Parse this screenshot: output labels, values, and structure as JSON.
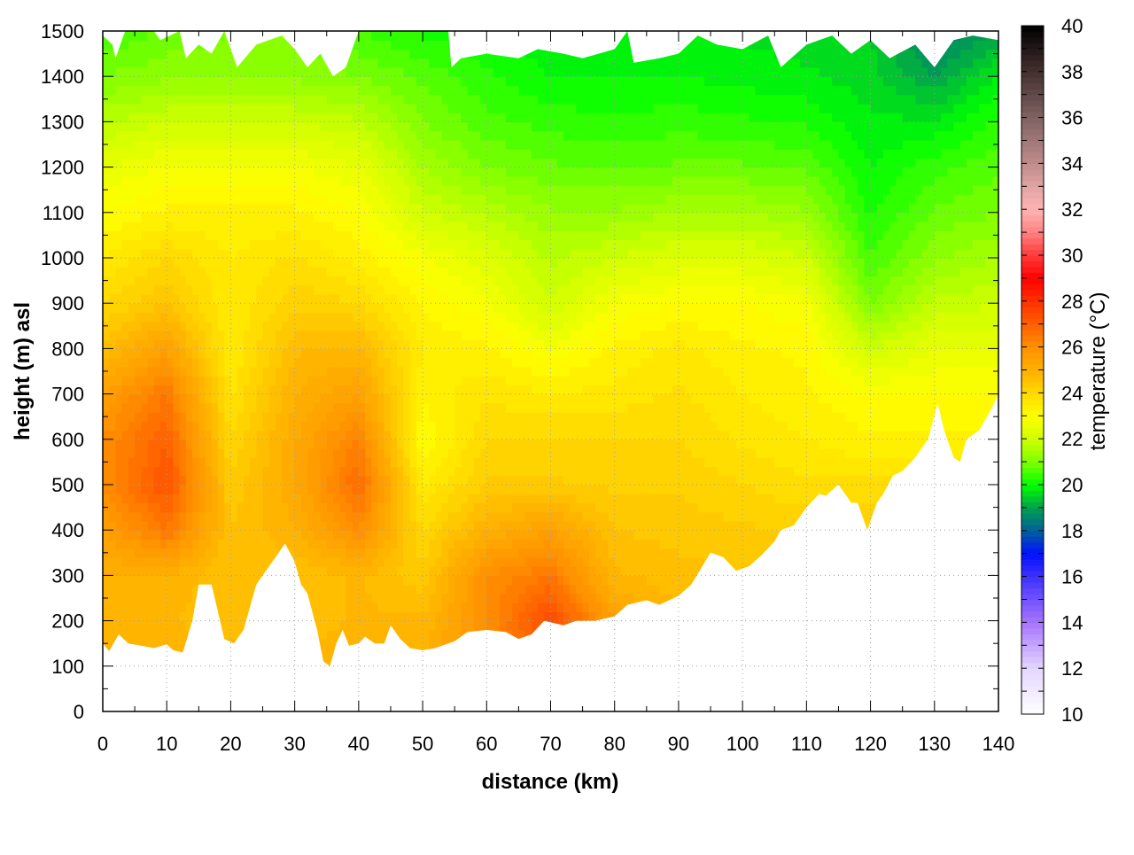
{
  "chart_data": {
    "type": "heatmap",
    "title": "",
    "xlabel": "distance (km)",
    "ylabel": "height (m) asl",
    "colorbar_label": "temperature (°C)",
    "xlim": [
      0,
      140
    ],
    "ylim": [
      0,
      1500
    ],
    "clim": [
      10,
      40
    ],
    "grid": true,
    "xticks": [
      0,
      10,
      20,
      30,
      40,
      50,
      60,
      70,
      80,
      90,
      100,
      110,
      120,
      130,
      140
    ],
    "yticks": [
      0,
      100,
      200,
      300,
      400,
      500,
      600,
      700,
      800,
      900,
      1000,
      1100,
      1200,
      1300,
      1400,
      1500
    ],
    "cticks": [
      10,
      12,
      14,
      16,
      18,
      20,
      22,
      24,
      26,
      28,
      30,
      32,
      34,
      36,
      38,
      40
    ],
    "colormap": [
      [
        10,
        "#ffffff"
      ],
      [
        12,
        "#e4d6ff"
      ],
      [
        14,
        "#a774ff"
      ],
      [
        16,
        "#3c32ff"
      ],
      [
        17,
        "#0010ff"
      ],
      [
        18,
        "#00609c"
      ],
      [
        19,
        "#00a04c"
      ],
      [
        20,
        "#00ff00"
      ],
      [
        21,
        "#80ff00"
      ],
      [
        22,
        "#d0ff00"
      ],
      [
        23,
        "#ffff00"
      ],
      [
        24,
        "#ffd800"
      ],
      [
        25,
        "#ffb000"
      ],
      [
        26,
        "#ff9000"
      ],
      [
        27,
        "#ff6000"
      ],
      [
        28,
        "#ff3000"
      ],
      [
        29,
        "#ff0000"
      ],
      [
        30,
        "#ff3a3a"
      ],
      [
        31,
        "#ff8080"
      ],
      [
        32,
        "#ffb4b4"
      ],
      [
        33,
        "#e0a4a4"
      ],
      [
        34,
        "#c08c8c"
      ],
      [
        36,
        "#806262"
      ],
      [
        38,
        "#44302f"
      ],
      [
        40,
        "#000000"
      ]
    ],
    "grid_x_km": [
      0,
      10,
      20,
      30,
      40,
      50,
      60,
      70,
      80,
      90,
      100,
      110,
      120,
      130,
      140
    ],
    "grid_y_m": [
      1500,
      1400,
      1300,
      1200,
      1100,
      1000,
      900,
      800,
      700,
      600,
      500,
      400,
      300,
      200,
      100,
      0
    ],
    "temperature": [
      [
        20.5,
        20.8,
        21.0,
        21.0,
        20.5,
        20.2,
        20.0,
        19.8,
        20.0,
        19.8,
        19.7,
        19.6,
        19.5,
        18.5,
        19.0
      ],
      [
        21.0,
        21.2,
        21.2,
        21.2,
        21.0,
        20.7,
        20.3,
        20.0,
        20.0,
        20.0,
        19.9,
        19.8,
        19.6,
        19.0,
        19.8
      ],
      [
        21.7,
        22.0,
        22.0,
        22.0,
        21.8,
        21.0,
        20.6,
        20.4,
        20.3,
        20.4,
        20.3,
        20.2,
        19.8,
        19.8,
        20.3
      ],
      [
        22.5,
        22.8,
        22.8,
        22.8,
        22.5,
        21.5,
        21.0,
        20.8,
        20.7,
        20.8,
        20.8,
        20.7,
        20.0,
        20.4,
        20.7
      ],
      [
        23.0,
        23.3,
        23.3,
        23.3,
        23.0,
        22.0,
        21.7,
        21.3,
        21.3,
        21.5,
        21.5,
        21.3,
        20.2,
        20.8,
        21.0
      ],
      [
        23.5,
        24.0,
        23.5,
        23.8,
        23.4,
        22.8,
        22.3,
        21.7,
        22.0,
        22.3,
        22.3,
        22.0,
        20.5,
        21.2,
        21.5
      ],
      [
        24.0,
        24.5,
        23.5,
        24.2,
        24.0,
        23.2,
        22.8,
        22.0,
        22.8,
        23.0,
        23.0,
        22.8,
        21.0,
        21.8,
        22.0
      ],
      [
        24.6,
        25.5,
        23.5,
        24.7,
        24.8,
        23.5,
        23.3,
        22.8,
        23.3,
        23.6,
        23.3,
        23.2,
        22.0,
        22.5,
        22.5
      ],
      [
        25.5,
        26.5,
        23.7,
        25.0,
        25.5,
        23.3,
        23.7,
        23.5,
        23.6,
        23.8,
        23.5,
        23.3,
        23.0,
        23.0,
        23.0
      ],
      [
        26.0,
        27.0,
        24.0,
        25.2,
        26.3,
        23.0,
        24.0,
        24.0,
        24.0,
        24.0,
        23.7,
        23.5,
        23.3,
        23.3,
        23.3
      ],
      [
        26.0,
        27.3,
        24.3,
        25.2,
        26.8,
        23.5,
        24.3,
        24.3,
        24.2,
        24.2,
        24.0,
        23.8,
        23.8,
        23.8,
        23.8
      ],
      [
        25.5,
        26.5,
        24.5,
        25.0,
        26.0,
        24.0,
        25.0,
        25.5,
        24.5,
        24.4,
        24.3,
        24.2,
        24.2,
        24.2,
        24.2
      ],
      [
        25.0,
        25.0,
        24.5,
        24.5,
        24.8,
        24.3,
        26.0,
        26.5,
        24.8,
        24.6,
        24.5,
        24.5,
        24.5,
        24.5,
        24.5
      ],
      [
        25.0,
        24.8,
        24.5,
        24.5,
        24.8,
        24.8,
        26.0,
        27.5,
        25.5,
        24.8,
        24.7,
        24.7,
        24.7,
        24.7,
        24.7
      ],
      [
        25.0,
        25.0,
        25.0,
        25.0,
        25.0,
        25.0,
        26.0,
        27.0,
        25.5,
        25.0,
        25.0,
        25.0,
        25.0,
        25.0,
        25.0
      ],
      [
        25.0,
        25.0,
        25.0,
        25.0,
        25.0,
        25.0,
        26.0,
        27.0,
        25.5,
        25.0,
        25.0,
        25.0,
        25.0,
        25.0,
        25.0
      ]
    ],
    "terrain_profile": [
      [
        0,
        150
      ],
      [
        1,
        133
      ],
      [
        2.5,
        170
      ],
      [
        4,
        150
      ],
      [
        6,
        145
      ],
      [
        8,
        140
      ],
      [
        10,
        148
      ],
      [
        11,
        135
      ],
      [
        12.5,
        130
      ],
      [
        14,
        200
      ],
      [
        15,
        280
      ],
      [
        17,
        280
      ],
      [
        18,
        220
      ],
      [
        19,
        160
      ],
      [
        20.5,
        150
      ],
      [
        22,
        180
      ],
      [
        24,
        280
      ],
      [
        26,
        320
      ],
      [
        28.5,
        370
      ],
      [
        30,
        330
      ],
      [
        31,
        280
      ],
      [
        32,
        260
      ],
      [
        33.5,
        180
      ],
      [
        34.5,
        110
      ],
      [
        35.5,
        100
      ],
      [
        36.5,
        150
      ],
      [
        37.5,
        180
      ],
      [
        38.5,
        145
      ],
      [
        40,
        150
      ],
      [
        41,
        165
      ],
      [
        42.5,
        150
      ],
      [
        44,
        150
      ],
      [
        45,
        190
      ],
      [
        46.5,
        160
      ],
      [
        48,
        140
      ],
      [
        50,
        135
      ],
      [
        52,
        140
      ],
      [
        55,
        155
      ],
      [
        57,
        175
      ],
      [
        60,
        180
      ],
      [
        63,
        175
      ],
      [
        65,
        160
      ],
      [
        67,
        170
      ],
      [
        69,
        200
      ],
      [
        72,
        190
      ],
      [
        74,
        200
      ],
      [
        77,
        200
      ],
      [
        80,
        210
      ],
      [
        82,
        235
      ],
      [
        85,
        245
      ],
      [
        87,
        235
      ],
      [
        90,
        255
      ],
      [
        92,
        280
      ],
      [
        95,
        350
      ],
      [
        97,
        340
      ],
      [
        99,
        310
      ],
      [
        101,
        320
      ],
      [
        103,
        345
      ],
      [
        105,
        375
      ],
      [
        106,
        400
      ],
      [
        108,
        410
      ],
      [
        110,
        450
      ],
      [
        112,
        480
      ],
      [
        113,
        475
      ],
      [
        115,
        500
      ],
      [
        117,
        460
      ],
      [
        118,
        460
      ],
      [
        119.5,
        400
      ],
      [
        121,
        460
      ],
      [
        122,
        480
      ],
      [
        123.5,
        520
      ],
      [
        125,
        530
      ],
      [
        127,
        560
      ],
      [
        129,
        600
      ],
      [
        130.5,
        680
      ],
      [
        131.5,
        620
      ],
      [
        133,
        560
      ],
      [
        134,
        550
      ],
      [
        135,
        600
      ],
      [
        137,
        620
      ],
      [
        139,
        670
      ],
      [
        140,
        700
      ]
    ],
    "data_top_profile": [
      [
        0,
        1490
      ],
      [
        1.5,
        1470
      ],
      [
        2,
        1440
      ],
      [
        3.5,
        1500
      ],
      [
        8,
        1500
      ],
      [
        9,
        1480
      ],
      [
        12,
        1500
      ],
      [
        13,
        1440
      ],
      [
        15,
        1470
      ],
      [
        17,
        1450
      ],
      [
        19,
        1500
      ],
      [
        21,
        1420
      ],
      [
        24,
        1470
      ],
      [
        28,
        1490
      ],
      [
        30,
        1460
      ],
      [
        32,
        1420
      ],
      [
        34,
        1450
      ],
      [
        36,
        1400
      ],
      [
        38,
        1420
      ],
      [
        40,
        1500
      ],
      [
        45,
        1500
      ],
      [
        50,
        1500
      ],
      [
        54,
        1500
      ],
      [
        54.5,
        1420
      ],
      [
        56,
        1440
      ],
      [
        60,
        1450
      ],
      [
        65,
        1440
      ],
      [
        68,
        1460
      ],
      [
        72,
        1450
      ],
      [
        75,
        1440
      ],
      [
        80,
        1460
      ],
      [
        82,
        1500
      ],
      [
        83,
        1430
      ],
      [
        87,
        1440
      ],
      [
        90,
        1450
      ],
      [
        93,
        1490
      ],
      [
        96,
        1470
      ],
      [
        100,
        1460
      ],
      [
        104,
        1490
      ],
      [
        106,
        1420
      ],
      [
        110,
        1470
      ],
      [
        114,
        1490
      ],
      [
        117,
        1450
      ],
      [
        120,
        1480
      ],
      [
        123,
        1440
      ],
      [
        127,
        1470
      ],
      [
        130,
        1420
      ],
      [
        133,
        1480
      ],
      [
        136,
        1490
      ],
      [
        140,
        1480
      ]
    ]
  }
}
